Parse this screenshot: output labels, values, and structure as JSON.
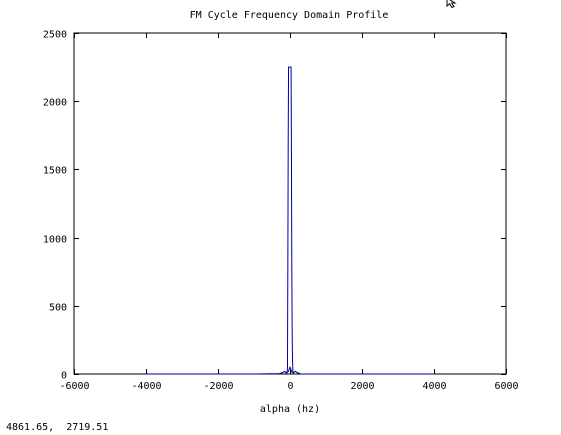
{
  "chart_data": {
    "type": "line",
    "title": "FM Cycle Frequency Domain Profile",
    "xlabel": "alpha (hz)",
    "ylabel": "",
    "xlim": [
      -6000,
      6000
    ],
    "ylim": [
      0,
      2500
    ],
    "xticks": [
      -6000,
      -4000,
      -2000,
      0,
      2000,
      4000,
      6000
    ],
    "yticks": [
      0,
      500,
      1000,
      1500,
      2000,
      2500
    ],
    "xtick_labels": [
      "-6000",
      "-4000",
      "-2000",
      "0",
      "2000",
      "4000",
      "6000"
    ],
    "ytick_labels": [
      "0",
      "500",
      "1000",
      "1500",
      "2000",
      "2500"
    ],
    "grid": false,
    "series_color": "#0000a0",
    "series": [
      {
        "x": [
          -4000,
          -3000,
          -2000,
          -1000,
          -300,
          -200,
          -150,
          -100,
          -90,
          -80,
          -70,
          -60,
          -50,
          -40,
          -30,
          0,
          30,
          40,
          50,
          60,
          70,
          80,
          90,
          100,
          150,
          200,
          300,
          1000,
          2000,
          3000,
          4000
        ],
        "y": [
          0,
          0,
          0,
          0,
          3,
          10,
          20,
          5,
          10,
          20,
          40,
          800,
          1700,
          2250,
          2250,
          2250,
          2250,
          1600,
          800,
          300,
          100,
          20,
          15,
          10,
          20,
          10,
          0,
          0,
          0,
          0,
          0
        ]
      },
      {
        "x": [
          -100,
          -80,
          -60,
          -40,
          -20,
          0,
          20,
          40,
          60,
          80,
          100
        ],
        "y": [
          5,
          10,
          15,
          20,
          40,
          50,
          40,
          20,
          15,
          10,
          5
        ]
      }
    ]
  },
  "status": {
    "coordinates": "4861.65,  2719.51"
  }
}
